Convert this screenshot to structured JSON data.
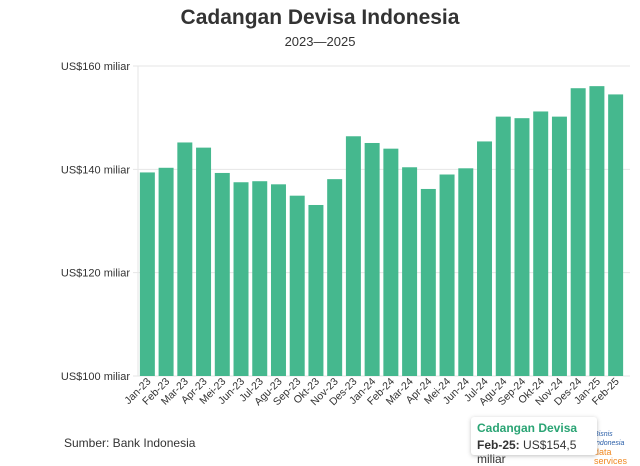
{
  "chart_data": {
    "type": "bar",
    "title": "Cadangan Devisa Indonesia",
    "subtitle": "2023—2025",
    "xlabel": "",
    "ylabel": "",
    "ylim": [
      100,
      160
    ],
    "yticks": [
      100,
      120,
      140,
      160
    ],
    "ytick_labels": [
      "US$100 miliar",
      "US$120 miliar",
      "US$140 miliar",
      "US$160 miliar"
    ],
    "grid": true,
    "categories": [
      "Jan-23",
      "Feb-23",
      "Mar-23",
      "Apr-23",
      "Mei-23",
      "Jun-23",
      "Jul-23",
      "Agu-23",
      "Sep-23",
      "Okt-23",
      "Nov-23",
      "Des-23",
      "Jan-24",
      "Feb-24",
      "Mar-24",
      "Apr-24",
      "Mei-24",
      "Jun-24",
      "Jul-24",
      "Agu-24",
      "Sep-24",
      "Okt-24",
      "Nov-24",
      "Des-24",
      "Jan-25",
      "Feb-25"
    ],
    "values": [
      139.4,
      140.3,
      145.2,
      144.2,
      139.3,
      137.5,
      137.7,
      137.1,
      134.9,
      133.1,
      138.1,
      146.4,
      145.1,
      144.0,
      140.4,
      136.2,
      139.0,
      140.2,
      145.4,
      150.2,
      149.9,
      151.2,
      150.2,
      155.7,
      156.1,
      154.5
    ],
    "color": "#45b88e",
    "source": "Sumber: Bank Indonesia"
  },
  "tooltip": {
    "series": "Cadangan Devisa",
    "label": "Feb-25:",
    "value": "US$154,5 miliar"
  },
  "logo": {
    "line1": "Bisnis Indonesia",
    "line2": "data",
    "line3": "services"
  }
}
